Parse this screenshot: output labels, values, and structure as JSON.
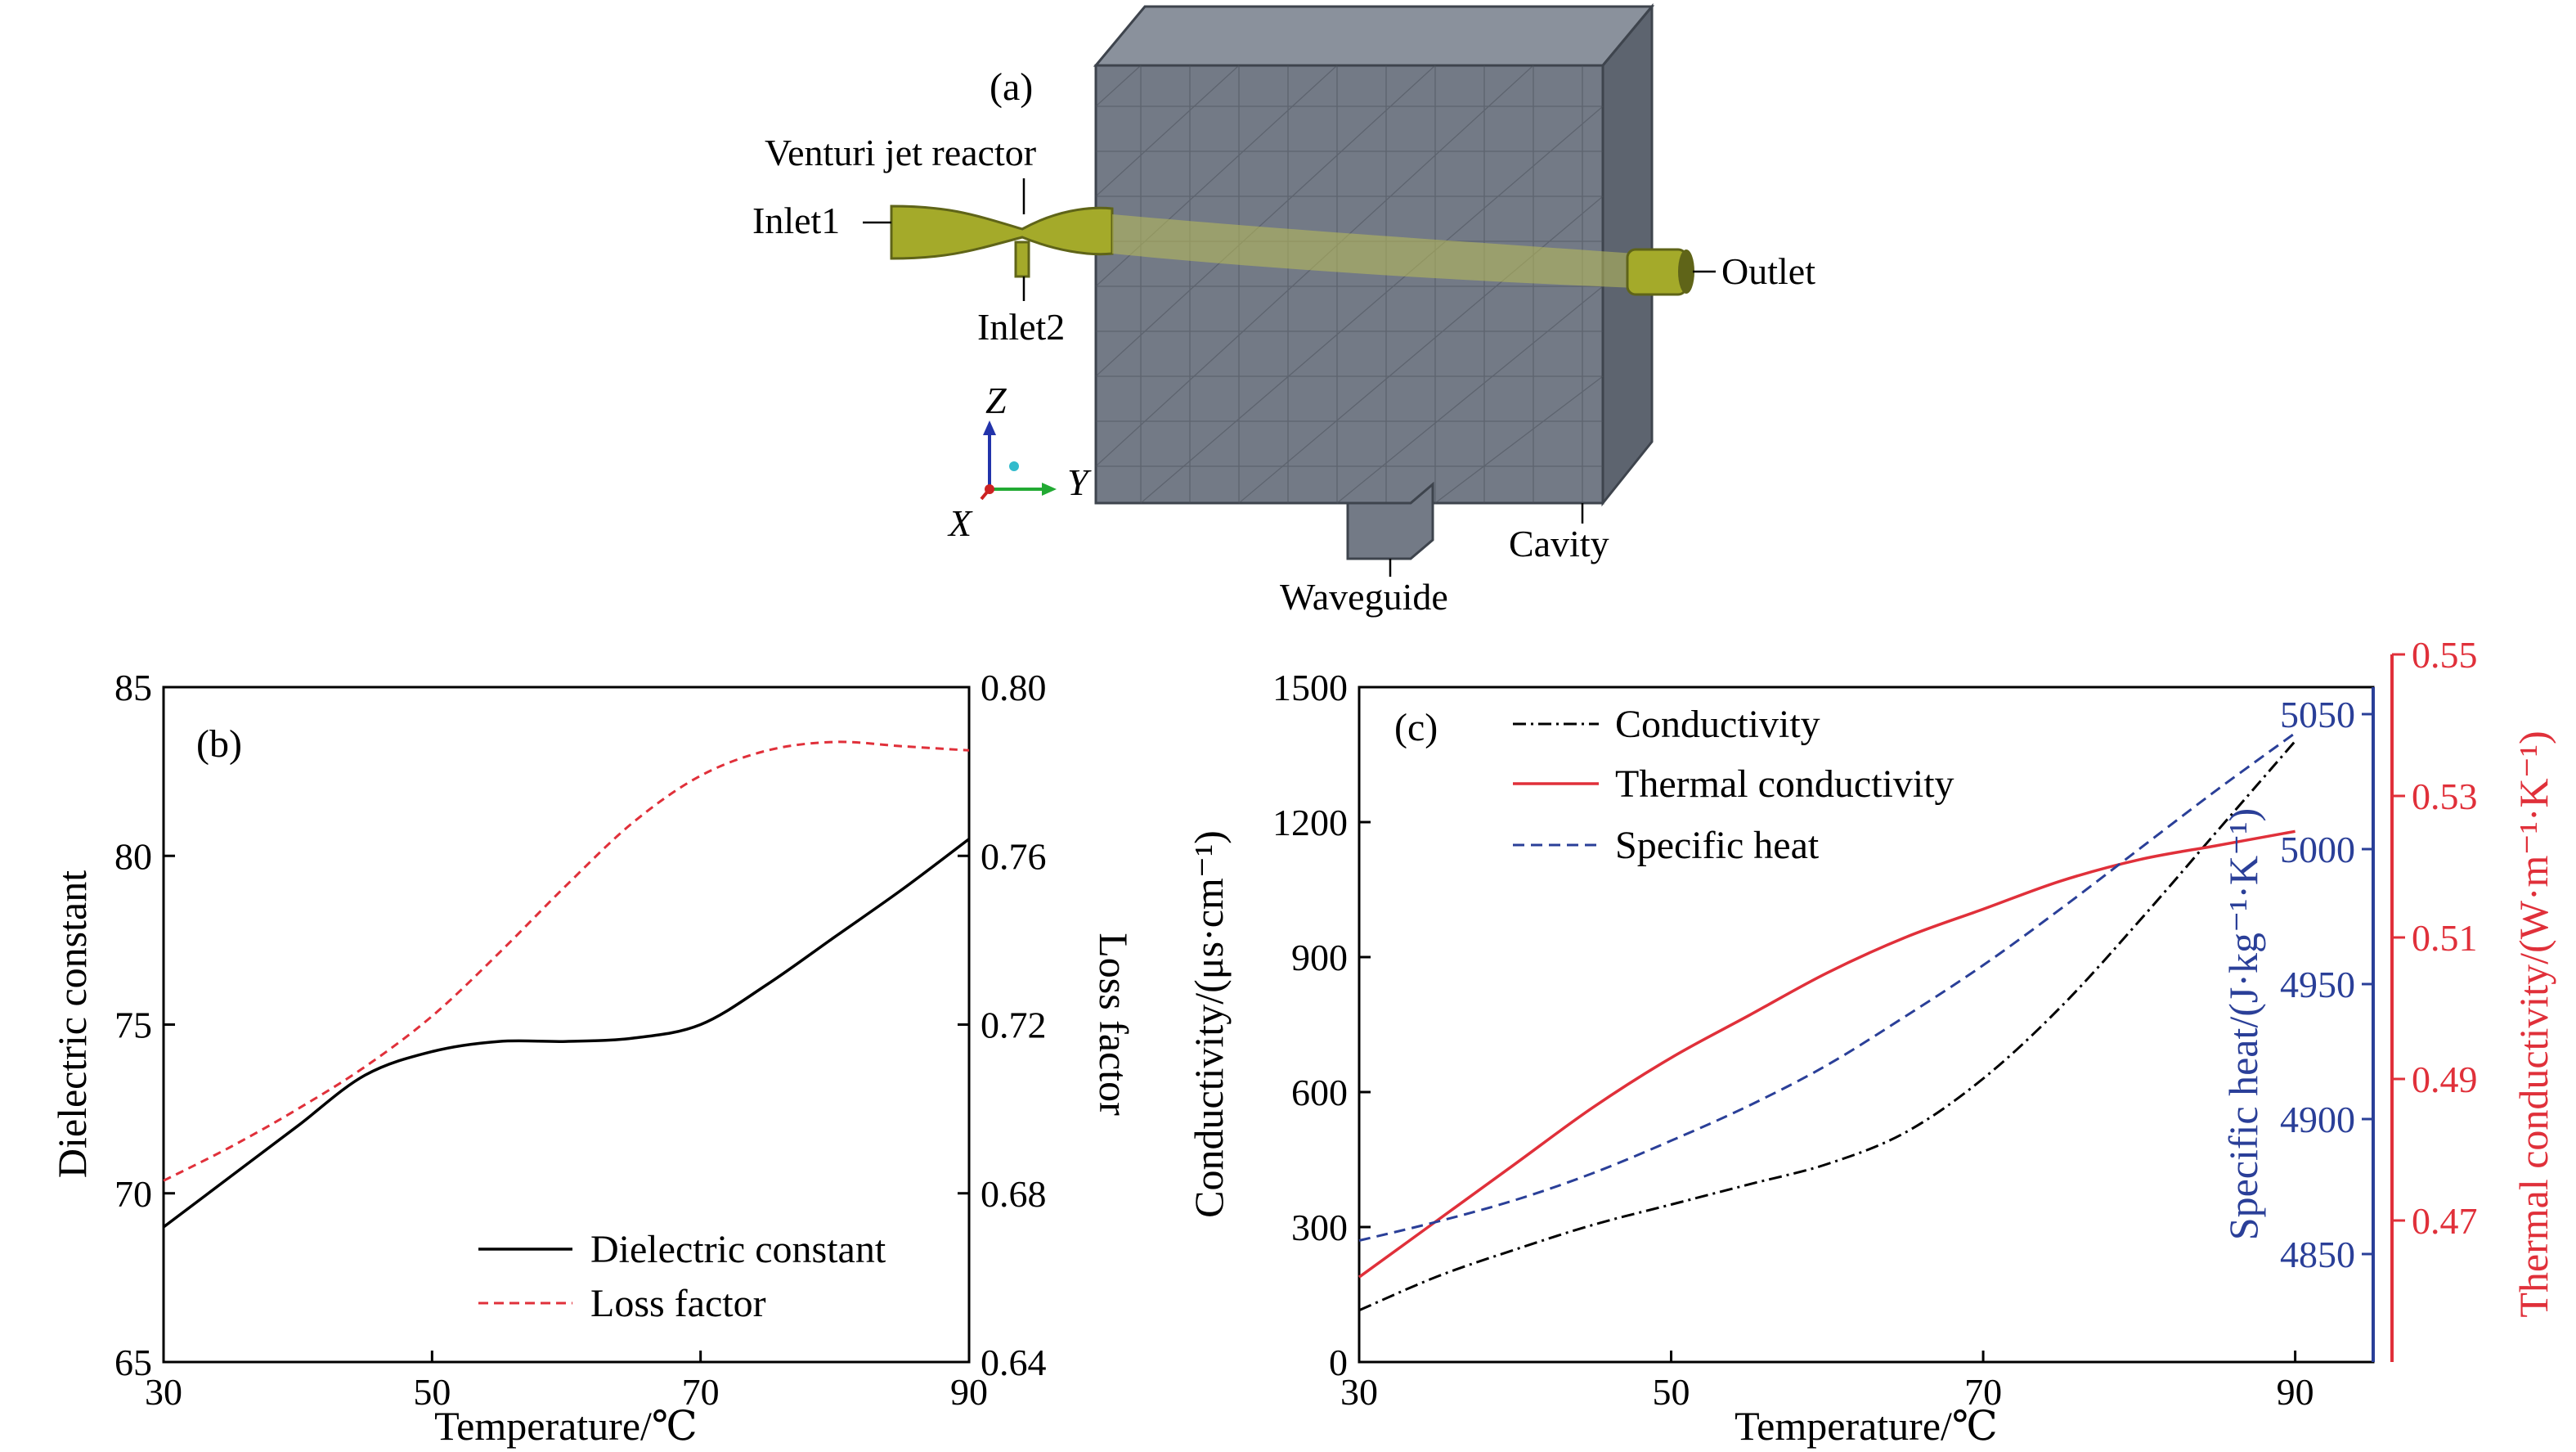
{
  "panel_a": {
    "label": "(a)",
    "annotations": {
      "venturi": "Venturi jet reactor",
      "inlet1": "Inlet1",
      "inlet2": "Inlet2",
      "outlet": "Outlet",
      "waveguide": "Waveguide",
      "cavity": "Cavity"
    },
    "axes": {
      "z": "Z",
      "y": "Y",
      "x": "X"
    },
    "colors": {
      "mesh": "#6b7380",
      "mesh_line": "#404650",
      "tube": "#a4aa2a",
      "tube_dark": "#5f6418"
    }
  },
  "chart_data": [
    {
      "type": "line",
      "panel_label": "(b)",
      "xlabel": "Temperature/℃",
      "ylabel": "Dielectric constant",
      "y2label": "Loss factor",
      "xlim": [
        30,
        90
      ],
      "ylim": [
        65,
        85
      ],
      "y2lim": [
        0.64,
        0.8
      ],
      "xticks": [
        30,
        50,
        70,
        90
      ],
      "yticks": [
        65,
        70,
        75,
        80,
        85
      ],
      "y2ticks": [
        "0.64",
        "0.68",
        "0.72",
        "0.76",
        "0.80"
      ],
      "legend_position": "bottom-right",
      "series": [
        {
          "name": "Dielectric constant",
          "axis": "left",
          "color": "#000000",
          "dash": "solid",
          "x": [
            30,
            35,
            40,
            45,
            50,
            55,
            60,
            65,
            70,
            75,
            80,
            85,
            90
          ],
          "y": [
            69.0,
            70.5,
            72.0,
            73.5,
            74.2,
            74.5,
            74.5,
            74.6,
            75.0,
            76.2,
            77.6,
            79.0,
            80.5
          ]
        },
        {
          "name": "Loss factor",
          "axis": "right",
          "color": "#e0303a",
          "dash": "short",
          "x": [
            30,
            35,
            40,
            45,
            50,
            55,
            60,
            65,
            70,
            75,
            80,
            85,
            90
          ],
          "y": [
            0.683,
            0.691,
            0.7,
            0.71,
            0.722,
            0.737,
            0.753,
            0.768,
            0.779,
            0.785,
            0.787,
            0.786,
            0.785
          ]
        }
      ]
    },
    {
      "type": "line",
      "panel_label": "(c)",
      "xlabel": "Temperature/℃",
      "ylabel": "Conductivity/(μs·cm⁻¹)",
      "y2label": "Specific heat/(J·kg⁻¹·K⁻¹)",
      "y3label": "Thermal conductivity/(W·m⁻¹·K⁻¹)",
      "xlim": [
        30,
        95
      ],
      "xticks": [
        30,
        50,
        70,
        90
      ],
      "ylim": [
        0,
        1500
      ],
      "yticks": [
        0,
        300,
        600,
        900,
        1200,
        1500
      ],
      "y2lim": [
        4810,
        5060
      ],
      "y2ticks": [
        4850,
        4900,
        4950,
        5000,
        5050
      ],
      "y3lim": [
        0.45,
        0.55
      ],
      "y3ticks": [
        "0.47",
        "0.49",
        "0.51",
        "0.53",
        "0.55"
      ],
      "legend_position": "top-left",
      "series": [
        {
          "name": "Conductivity",
          "axis": "left",
          "color": "#000000",
          "dash": "dashdot",
          "x": [
            30,
            35,
            40,
            45,
            50,
            55,
            60,
            65,
            70,
            75,
            80,
            85,
            90
          ],
          "y": [
            115,
            190,
            250,
            305,
            350,
            395,
            440,
            510,
            630,
            790,
            980,
            1180,
            1380
          ]
        },
        {
          "name": "Thermal conductivity",
          "axis": "right2",
          "color": "#e0303a",
          "dash": "solid",
          "x": [
            30,
            35,
            40,
            45,
            50,
            55,
            60,
            65,
            70,
            75,
            80,
            85,
            90
          ],
          "y": [
            0.462,
            0.47,
            0.478,
            0.486,
            0.493,
            0.499,
            0.505,
            0.51,
            0.514,
            0.518,
            0.521,
            0.523,
            0.525
          ]
        },
        {
          "name": "Specific heat",
          "axis": "right1",
          "color": "#2a3f98",
          "dash": "dashed",
          "x": [
            30,
            35,
            40,
            45,
            50,
            55,
            60,
            65,
            70,
            75,
            80,
            85,
            90
          ],
          "y": [
            4855,
            4862,
            4870,
            4880,
            4892,
            4905,
            4920,
            4938,
            4957,
            4978,
            5000,
            5022,
            5043
          ]
        }
      ]
    }
  ]
}
